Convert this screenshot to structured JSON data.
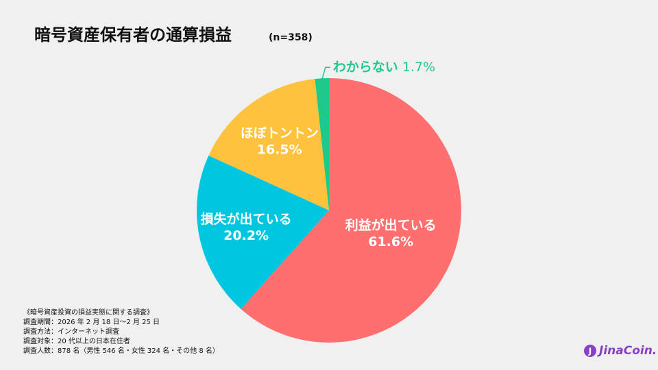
{
  "chart_data": {
    "type": "pie",
    "title": "暗号資産保有者の通算損益",
    "subtitle": "(n=358)",
    "categories": [
      "利益が出ている",
      "損失が出ている",
      "ほぼトントン",
      "わからない"
    ],
    "values": [
      61.6,
      20.2,
      16.5,
      1.7
    ],
    "value_labels": [
      "61.6%",
      "20.2%",
      "16.5%",
      "1.7%"
    ],
    "colors": [
      "#ff6f6f",
      "#00c6e0",
      "#ffc23f",
      "#1fc98a"
    ],
    "notes": [
      "《暗号資産投資の損益実態に関する調査》",
      "調査期間：2026 年 2 月 18 日〜2 月 25 日",
      "調査方法：インターネット調査",
      "調査対象：20 代以上の日本在住者",
      "調査人数：878 名（男性 546 名・女性 324 名・その他 8 名）"
    ],
    "logo": "JinaCoin."
  }
}
